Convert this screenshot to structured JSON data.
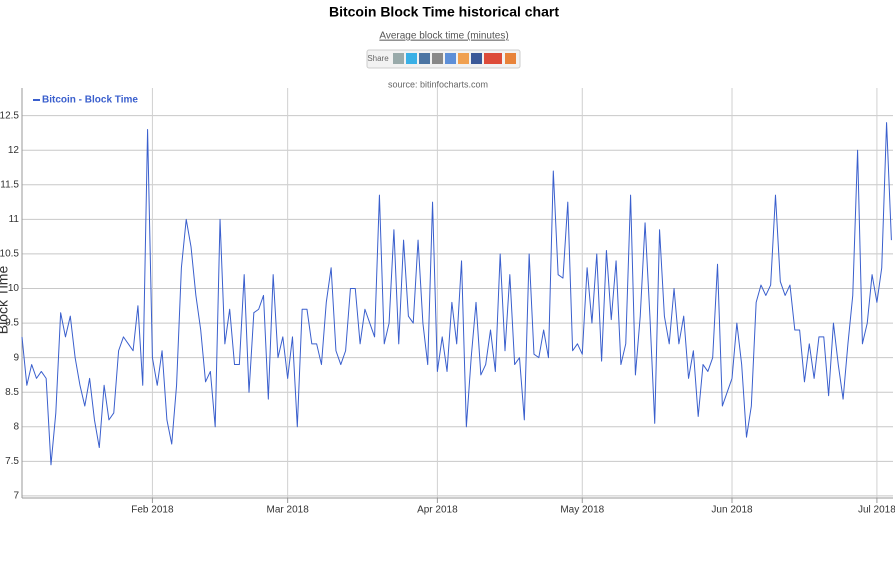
{
  "chart_data": {
    "type": "line",
    "title": "Bitcoin Block Time historical chart",
    "subtitle": "Average block time (minutes)",
    "share_label": "Share",
    "source": "source: bitinfocharts.com",
    "y_label": "Block Time",
    "categories": [
      null,
      null,
      null,
      null,
      null,
      null,
      null,
      null,
      null,
      null,
      null,
      null,
      null,
      null,
      null,
      null,
      null,
      null,
      null,
      null,
      null,
      null,
      null,
      null,
      null,
      null,
      null,
      "Feb 2018",
      null,
      null,
      null,
      null,
      null,
      null,
      null,
      null,
      null,
      null,
      null,
      null,
      null,
      null,
      null,
      null,
      null,
      null,
      null,
      null,
      null,
      null,
      null,
      null,
      null,
      null,
      null,
      "Mar 2018",
      null,
      null,
      null,
      null,
      null,
      null,
      null,
      null,
      null,
      null,
      null,
      null,
      null,
      null,
      null,
      null,
      null,
      null,
      null,
      null,
      null,
      null,
      null,
      null,
      null,
      null,
      null,
      null,
      null,
      null,
      "Apr 2018",
      null,
      null,
      null,
      null,
      null,
      null,
      null,
      null,
      null,
      null,
      null,
      null,
      null,
      null,
      null,
      null,
      null,
      null,
      null,
      null,
      null,
      null,
      null,
      null,
      null,
      null,
      null,
      null,
      null,
      "May 2018",
      null,
      null,
      null,
      null,
      null,
      null,
      null,
      null,
      null,
      null,
      null,
      null,
      null,
      null,
      null,
      null,
      null,
      null,
      null,
      null,
      null,
      null,
      null,
      null,
      null,
      null,
      null,
      null,
      null,
      null,
      "Jun 2018",
      null,
      null,
      null,
      null,
      null,
      null,
      null,
      null,
      null,
      null,
      null,
      null,
      null,
      null,
      null,
      null,
      null,
      null,
      null,
      null,
      null,
      null,
      null,
      null,
      null,
      null,
      null,
      null,
      null,
      "Jul 2018",
      null,
      null,
      null
    ],
    "series": [
      {
        "name": "Bitcoin - Block Time",
        "color": "#3a5fcd",
        "values": [
          9.3,
          8.6,
          8.9,
          8.7,
          8.8,
          8.7,
          7.45,
          8.2,
          9.65,
          9.3,
          9.6,
          9.0,
          8.6,
          8.3,
          8.7,
          8.1,
          7.7,
          8.6,
          8.1,
          8.2,
          9.1,
          9.3,
          9.2,
          9.1,
          9.75,
          8.6,
          12.3,
          9.0,
          8.6,
          9.1,
          8.1,
          7.75,
          8.6,
          10.3,
          11.0,
          10.6,
          9.9,
          9.4,
          8.65,
          8.8,
          8.0,
          11.0,
          9.2,
          9.7,
          8.9,
          8.9,
          10.2,
          8.5,
          9.65,
          9.7,
          9.9,
          8.4,
          10.2,
          9.0,
          9.3,
          8.7,
          9.3,
          8.0,
          9.7,
          9.7,
          9.2,
          9.2,
          8.9,
          9.8,
          10.3,
          9.1,
          8.9,
          9.1,
          10.0,
          10.0,
          9.2,
          9.7,
          9.5,
          9.3,
          11.35,
          9.2,
          9.5,
          10.85,
          9.2,
          10.7,
          9.6,
          9.5,
          10.7,
          9.5,
          8.9,
          11.25,
          8.8,
          9.3,
          8.8,
          9.8,
          9.2,
          10.4,
          8.0,
          9.0,
          9.8,
          8.75,
          8.9,
          9.4,
          8.8,
          10.5,
          9.1,
          10.2,
          8.9,
          9.0,
          8.1,
          10.5,
          9.05,
          9.0,
          9.4,
          9.0,
          11.7,
          10.2,
          10.15,
          11.25,
          9.1,
          9.2,
          9.05,
          10.3,
          9.5,
          10.5,
          8.95,
          10.55,
          9.55,
          10.4,
          8.9,
          9.2,
          11.35,
          8.75,
          9.6,
          10.95,
          9.6,
          8.05,
          10.85,
          9.6,
          9.2,
          10.0,
          9.2,
          9.6,
          8.7,
          9.1,
          8.15,
          8.9,
          8.8,
          9.0,
          10.35,
          8.3,
          8.5,
          8.7,
          9.5,
          8.9,
          7.85,
          8.3,
          9.8,
          10.05,
          9.9,
          10.05,
          11.35,
          10.1,
          9.9,
          10.05,
          9.4,
          9.4,
          8.65,
          9.2,
          8.7,
          9.3,
          9.3,
          8.45,
          9.5,
          8.9,
          8.4,
          9.2,
          9.9,
          12.0,
          9.2,
          9.5,
          10.2,
          9.8,
          10.3,
          12.4,
          10.7
        ]
      }
    ],
    "ylim": [
      6.97,
      12.9
    ],
    "yticks": [
      7,
      7.5,
      8,
      8.5,
      9,
      9.5,
      10,
      10.5,
      11,
      11.5,
      12,
      12.5
    ],
    "grid": true,
    "legend": "top-left"
  }
}
